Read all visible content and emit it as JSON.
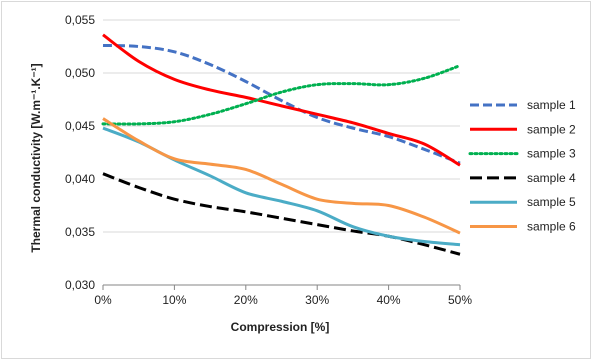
{
  "chart_data": {
    "type": "line",
    "title": "",
    "xlabel": "Compression [%]",
    "ylabel": "Thermal conductivity [W.m⁻¹.K⁻¹]",
    "xlim": [
      0,
      50
    ],
    "ylim": [
      0.03,
      0.055
    ],
    "grid": "horizontal",
    "legend_position": "right",
    "x_tick_labels": [
      "0%",
      "10%",
      "20%",
      "30%",
      "40%",
      "50%"
    ],
    "y_tick_labels": [
      "0,030",
      "0,035",
      "0,040",
      "0,045",
      "0,050",
      "0,055"
    ],
    "x": [
      0,
      5,
      10,
      15,
      20,
      25,
      30,
      35,
      40,
      45,
      50
    ],
    "series": [
      {
        "name": "sample 1",
        "color": "#4472c4",
        "dash": "dash",
        "values": [
          0.0526,
          0.0525,
          0.052,
          0.0508,
          0.0492,
          0.0474,
          0.0458,
          0.0448,
          0.044,
          0.0428,
          0.0415
        ]
      },
      {
        "name": "sample 2",
        "color": "#ff0000",
        "dash": "solid",
        "values": [
          0.0536,
          0.0511,
          0.0494,
          0.0484,
          0.0477,
          0.0469,
          0.0461,
          0.0453,
          0.0443,
          0.0433,
          0.0413
        ]
      },
      {
        "name": "sample 3",
        "color": "#00b050",
        "dash": "dot",
        "values": [
          0.0452,
          0.0452,
          0.0454,
          0.0461,
          0.0471,
          0.0482,
          0.0489,
          0.049,
          0.0489,
          0.0495,
          0.0507
        ]
      },
      {
        "name": "sample 4",
        "color": "#000000",
        "dash": "longdash",
        "values": [
          0.0405,
          0.0392,
          0.0381,
          0.0374,
          0.0369,
          0.0363,
          0.0357,
          0.0351,
          0.0346,
          0.0338,
          0.0329
        ]
      },
      {
        "name": "sample 5",
        "color": "#4bacc6",
        "dash": "solid",
        "values": [
          0.0448,
          0.0435,
          0.0418,
          0.0403,
          0.0387,
          0.0379,
          0.037,
          0.0355,
          0.0346,
          0.0341,
          0.0338
        ]
      },
      {
        "name": "sample 6",
        "color": "#f79646",
        "dash": "solid",
        "values": [
          0.0457,
          0.0436,
          0.0419,
          0.0414,
          0.0409,
          0.0395,
          0.0381,
          0.0377,
          0.0375,
          0.0364,
          0.0349
        ]
      }
    ]
  }
}
